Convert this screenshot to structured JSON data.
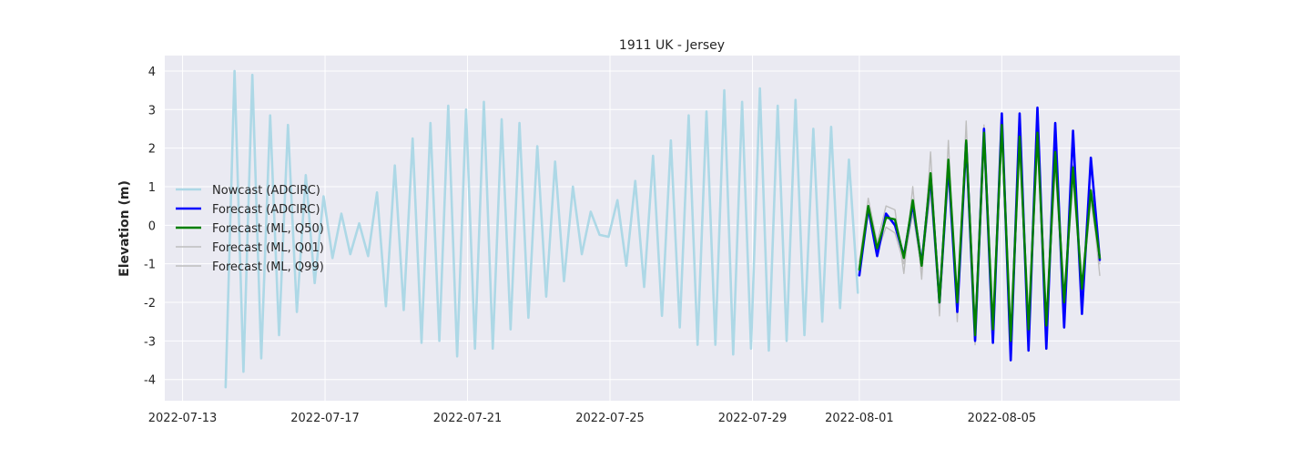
{
  "chart_data": {
    "type": "line",
    "title": "1911 UK - Jersey",
    "xlabel": "",
    "ylabel": "Elevation (m)",
    "x_type": "date",
    "xlim": [
      "2022-07-12T12:00",
      "2022-08-10T00:00"
    ],
    "ylim": [
      -4.55,
      4.4
    ],
    "x_ticks": [
      "2022-07-13",
      "2022-07-17",
      "2022-07-21",
      "2022-07-25",
      "2022-07-29",
      "2022-08-01",
      "2022-08-05"
    ],
    "y_ticks": [
      -4,
      -3,
      -2,
      -1,
      0,
      1,
      2,
      3,
      4
    ],
    "grid": true,
    "legend_position": "center-left",
    "colors": {
      "background": "#eaeaf2",
      "grid": "#ffffff",
      "nowcast": "#add8e6",
      "forecast_adcirc": "#0000ff",
      "forecast_q50": "#008000",
      "forecast_quantiles": "#bebebe"
    },
    "series": [
      {
        "name": "Nowcast (ADCIRC)",
        "color": "#add8e6",
        "x": [
          "2022-07-14T05:00",
          "2022-07-14T11:00",
          "2022-07-14T17:00",
          "2022-07-14T23:00",
          "2022-07-15T05:00",
          "2022-07-15T11:00",
          "2022-07-15T17:00",
          "2022-07-15T23:00",
          "2022-07-16T05:00",
          "2022-07-16T11:00",
          "2022-07-16T17:00",
          "2022-07-16T23:00",
          "2022-07-17T05:00",
          "2022-07-17T11:00",
          "2022-07-17T17:00",
          "2022-07-17T23:00",
          "2022-07-18T05:00",
          "2022-07-18T11:00",
          "2022-07-18T17:00",
          "2022-07-18T23:00",
          "2022-07-19T05:00",
          "2022-07-19T11:00",
          "2022-07-19T17:00",
          "2022-07-19T23:00",
          "2022-07-20T05:00",
          "2022-07-20T11:00",
          "2022-07-20T17:00",
          "2022-07-20T23:00",
          "2022-07-21T05:00",
          "2022-07-21T11:00",
          "2022-07-21T17:00",
          "2022-07-21T23:00",
          "2022-07-22T05:00",
          "2022-07-22T11:00",
          "2022-07-22T17:00",
          "2022-07-22T23:00",
          "2022-07-23T05:00",
          "2022-07-23T11:00",
          "2022-07-23T17:00",
          "2022-07-23T23:00",
          "2022-07-24T05:00",
          "2022-07-24T11:00",
          "2022-07-24T17:00",
          "2022-07-24T23:00",
          "2022-07-25T05:00",
          "2022-07-25T11:00",
          "2022-07-25T17:00",
          "2022-07-25T23:00",
          "2022-07-26T05:00",
          "2022-07-26T11:00",
          "2022-07-26T17:00",
          "2022-07-26T23:00",
          "2022-07-27T05:00",
          "2022-07-27T11:00",
          "2022-07-27T17:00",
          "2022-07-27T23:00",
          "2022-07-28T05:00",
          "2022-07-28T11:00",
          "2022-07-28T17:00",
          "2022-07-28T23:00",
          "2022-07-29T05:00",
          "2022-07-29T11:00",
          "2022-07-29T17:00",
          "2022-07-29T23:00",
          "2022-07-30T05:00",
          "2022-07-30T11:00",
          "2022-07-30T17:00",
          "2022-07-30T23:00",
          "2022-07-31T05:00",
          "2022-07-31T11:00",
          "2022-07-31T17:00",
          "2022-07-31T23:00"
        ],
        "values": [
          -4.2,
          4.0,
          -3.8,
          3.9,
          -3.45,
          2.85,
          -2.85,
          2.6,
          -2.25,
          1.3,
          -1.5,
          0.75,
          -0.85,
          0.3,
          -0.75,
          0.05,
          -0.8,
          0.85,
          -2.1,
          1.55,
          -2.2,
          2.25,
          -3.05,
          2.65,
          -3.0,
          3.1,
          -3.4,
          3.0,
          -3.2,
          3.2,
          -3.2,
          2.75,
          -2.7,
          2.65,
          -2.4,
          2.05,
          -1.85,
          1.65,
          -1.45,
          1.0,
          -0.75,
          0.35,
          -0.25,
          -0.3,
          0.65,
          -1.05,
          1.15,
          -1.6,
          1.8,
          -2.35,
          2.2,
          -2.65,
          2.85,
          -3.1,
          2.95,
          -3.1,
          3.5,
          -3.35,
          3.2,
          -3.2,
          3.55,
          -3.25,
          3.1,
          -3.0,
          3.25,
          -2.85,
          2.5,
          -2.5,
          2.55,
          -2.15,
          1.7,
          -1.75
        ]
      },
      {
        "name": "Forecast (ADCIRC)",
        "color": "#0000ff",
        "x": [
          "2022-08-01T00:00",
          "2022-08-01T06:00",
          "2022-08-01T12:00",
          "2022-08-01T18:00",
          "2022-08-02T00:00",
          "2022-08-02T06:00",
          "2022-08-02T12:00",
          "2022-08-02T18:00",
          "2022-08-03T00:00",
          "2022-08-03T06:00",
          "2022-08-03T12:00",
          "2022-08-03T18:00",
          "2022-08-04T00:00",
          "2022-08-04T06:00",
          "2022-08-04T12:00",
          "2022-08-04T18:00",
          "2022-08-05T00:00",
          "2022-08-05T06:00",
          "2022-08-05T12:00",
          "2022-08-05T18:00",
          "2022-08-06T00:00",
          "2022-08-06T06:00",
          "2022-08-06T12:00",
          "2022-08-06T18:00",
          "2022-08-07T00:00",
          "2022-08-07T06:00",
          "2022-08-07T12:00",
          "2022-08-07T18:00"
        ],
        "values": [
          -1.3,
          0.45,
          -0.8,
          0.3,
          0.0,
          -0.8,
          0.55,
          -1.0,
          1.25,
          -2.0,
          1.55,
          -2.25,
          2.15,
          -3.0,
          2.5,
          -3.05,
          2.9,
          -3.5,
          2.9,
          -3.25,
          3.05,
          -3.2,
          2.65,
          -2.65,
          2.45,
          -2.3,
          1.75,
          -0.9
        ]
      },
      {
        "name": "Forecast (ML, Q50)",
        "color": "#008000",
        "x": [
          "2022-08-01T00:00",
          "2022-08-01T06:00",
          "2022-08-01T12:00",
          "2022-08-01T18:00",
          "2022-08-02T00:00",
          "2022-08-02T06:00",
          "2022-08-02T12:00",
          "2022-08-02T18:00",
          "2022-08-03T00:00",
          "2022-08-03T06:00",
          "2022-08-03T12:00",
          "2022-08-03T18:00",
          "2022-08-04T00:00",
          "2022-08-04T06:00",
          "2022-08-04T12:00",
          "2022-08-04T18:00",
          "2022-08-05T00:00",
          "2022-08-05T06:00",
          "2022-08-05T12:00",
          "2022-08-05T18:00",
          "2022-08-06T00:00",
          "2022-08-06T06:00",
          "2022-08-06T12:00",
          "2022-08-06T18:00",
          "2022-08-07T00:00",
          "2022-08-07T06:00",
          "2022-08-07T12:00",
          "2022-08-07T18:00"
        ],
        "values": [
          -1.15,
          0.5,
          -0.6,
          0.2,
          0.15,
          -0.85,
          0.65,
          -1.05,
          1.35,
          -2.0,
          1.7,
          -2.0,
          2.2,
          -2.85,
          2.4,
          -2.7,
          2.6,
          -3.0,
          2.3,
          -2.7,
          2.4,
          -2.6,
          1.9,
          -2.0,
          1.5,
          -1.65,
          0.9,
          -0.85
        ]
      },
      {
        "name": "Forecast (ML, Q01)",
        "color": "#bebebe",
        "x": [
          "2022-08-01T00:00",
          "2022-08-01T06:00",
          "2022-08-01T12:00",
          "2022-08-01T18:00",
          "2022-08-02T00:00",
          "2022-08-02T06:00",
          "2022-08-02T12:00",
          "2022-08-02T18:00",
          "2022-08-03T00:00",
          "2022-08-03T06:00",
          "2022-08-03T12:00",
          "2022-08-03T18:00",
          "2022-08-04T00:00",
          "2022-08-04T06:00",
          "2022-08-04T12:00",
          "2022-08-04T18:00",
          "2022-08-05T00:00",
          "2022-08-05T06:00",
          "2022-08-05T12:00",
          "2022-08-05T18:00",
          "2022-08-06T00:00",
          "2022-08-06T06:00",
          "2022-08-06T12:00",
          "2022-08-06T18:00",
          "2022-08-07T00:00",
          "2022-08-07T06:00",
          "2022-08-07T12:00",
          "2022-08-07T18:00"
        ],
        "values": [
          -1.25,
          0.3,
          -0.7,
          -0.05,
          -0.2,
          -1.0,
          0.3,
          -1.15,
          0.85,
          -2.15,
          1.3,
          -2.2,
          1.9,
          -3.0,
          2.1,
          -2.9,
          2.3,
          -3.2,
          2.0,
          -2.8,
          2.1,
          -2.7,
          1.55,
          -2.15,
          1.2,
          -1.85,
          0.65,
          -1.0
        ]
      },
      {
        "name": "Forecast (ML, Q99)",
        "color": "#bebebe",
        "x": [
          "2022-08-01T00:00",
          "2022-08-01T06:00",
          "2022-08-01T12:00",
          "2022-08-01T18:00",
          "2022-08-02T00:00",
          "2022-08-02T06:00",
          "2022-08-02T12:00",
          "2022-08-02T18:00",
          "2022-08-03T00:00",
          "2022-08-03T06:00",
          "2022-08-03T12:00",
          "2022-08-03T18:00",
          "2022-08-04T00:00",
          "2022-08-04T06:00",
          "2022-08-04T12:00",
          "2022-08-04T18:00",
          "2022-08-05T00:00",
          "2022-08-05T06:00",
          "2022-08-05T12:00",
          "2022-08-05T18:00",
          "2022-08-06T00:00",
          "2022-08-06T06:00",
          "2022-08-06T12:00",
          "2022-08-06T18:00",
          "2022-08-07T00:00",
          "2022-08-07T06:00",
          "2022-08-07T12:00",
          "2022-08-07T18:00"
        ],
        "values": [
          -0.95,
          0.7,
          -0.45,
          0.5,
          0.4,
          -1.25,
          1.0,
          -1.4,
          1.9,
          -2.35,
          2.2,
          -2.5,
          2.7,
          -3.1,
          2.6,
          -3.0,
          2.55,
          -3.3,
          2.3,
          -3.0,
          2.4,
          -2.8,
          1.95,
          -2.3,
          1.55,
          -1.9,
          0.95,
          -1.3
        ]
      }
    ]
  }
}
